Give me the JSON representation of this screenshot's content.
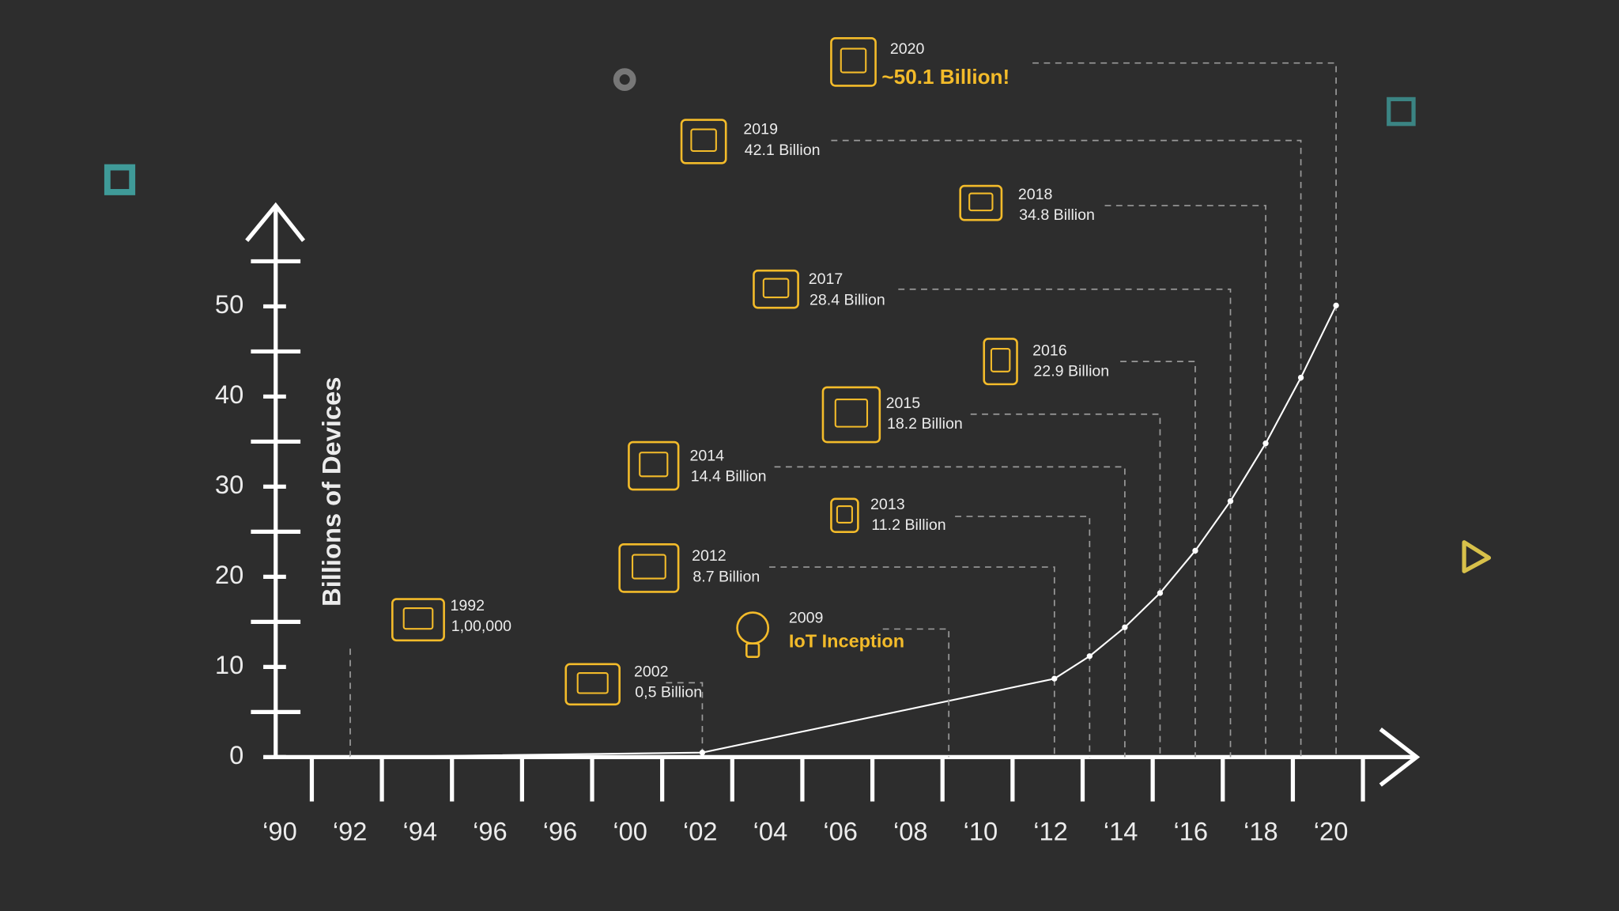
{
  "chart_data": {
    "type": "line",
    "y_label": "Billions of Devices",
    "categories": [
      "‘90",
      "‘92",
      "‘94",
      "‘96",
      "‘96",
      "‘00",
      "‘02",
      "‘04",
      "‘06",
      "‘08",
      "‘10",
      "‘12",
      "‘14",
      "‘16",
      "‘18",
      "‘20"
    ],
    "xlim": [
      1990,
      2020
    ],
    "ylim": [
      0,
      55
    ],
    "yticks": [
      0,
      10,
      20,
      30,
      40,
      50
    ],
    "minor_yticks": [
      5,
      15,
      25,
      35,
      45,
      55
    ],
    "series": [
      {
        "color": "#ffffff",
        "x": [
          1992,
          2002,
          2012,
          2013,
          2014,
          2015,
          2016,
          2017,
          2018,
          2019,
          2020
        ],
        "values": [
          0.0001,
          0.5,
          8.7,
          11.2,
          14.4,
          18.2,
          22.9,
          28.4,
          34.8,
          42.1,
          50.1
        ],
        "value_labels": [
          "1,00,000",
          "0,5 Billion",
          "8.7 Billion",
          "11.2 Billion",
          "14.4 Billion",
          "18.2 Billion",
          "22.9 Billion",
          "28.4 Billion",
          "34.8 Billion",
          "42.1 Billion",
          "~50.1 Billion!"
        ]
      }
    ],
    "annotations": [
      {
        "x": 2009,
        "label": "IoT Inception"
      }
    ],
    "accent_color": "#f3bb2a"
  }
}
